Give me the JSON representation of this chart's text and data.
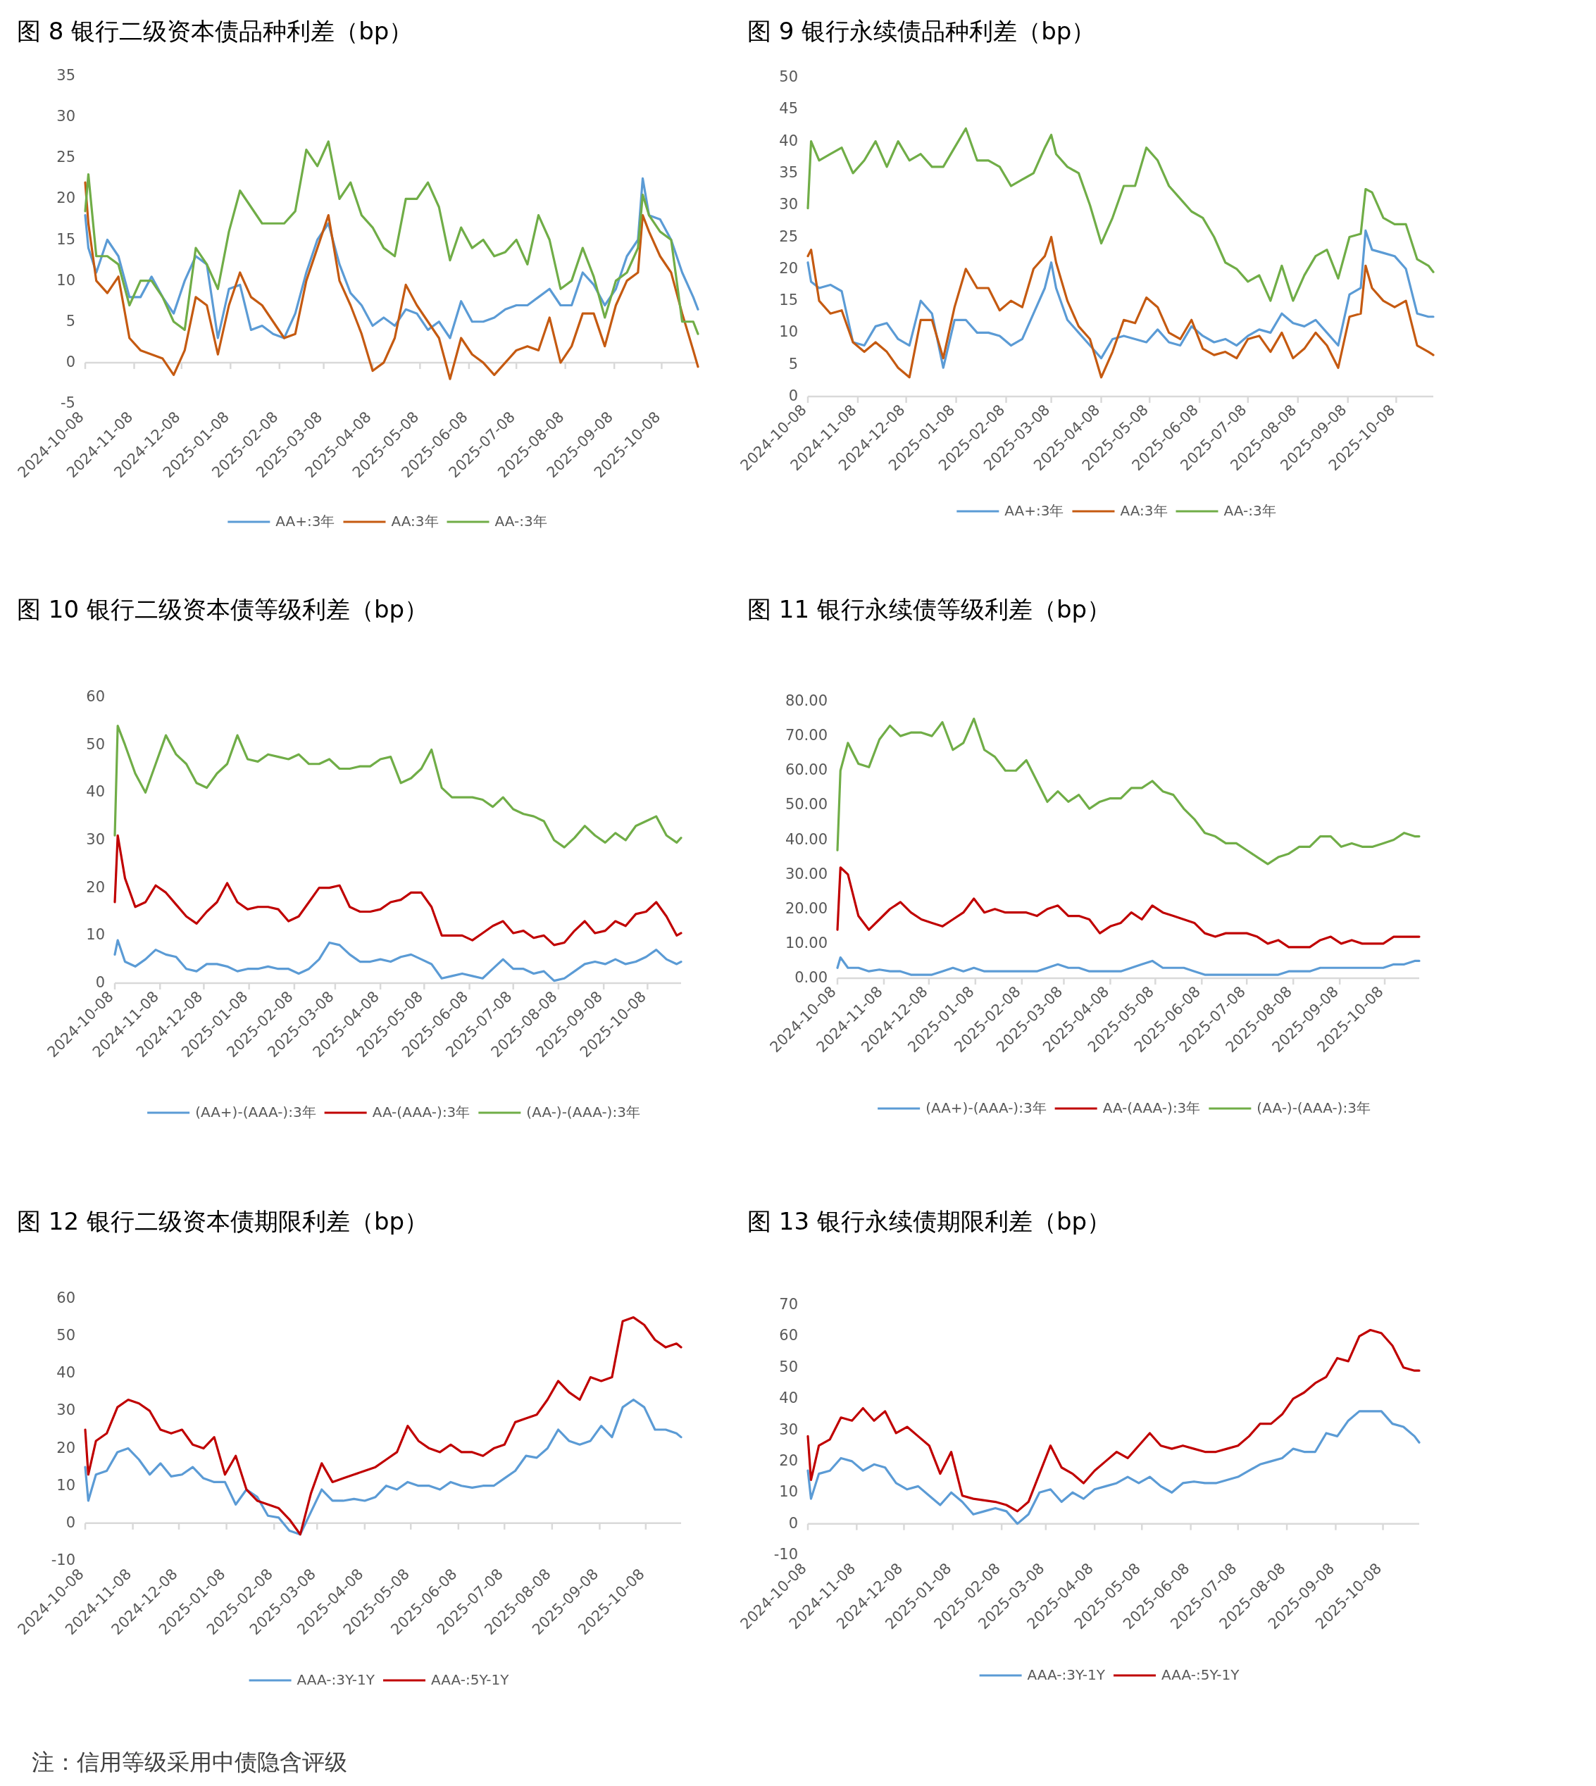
{
  "chart_data": [
    {
      "type": "line",
      "title": "图 8  银行二级资本债品种利差（bp）",
      "legend": "bottom",
      "grid": false,
      "xlim": [
        "2024-10-08",
        "2025-10-31"
      ],
      "xticks": [
        "2024-10-08",
        "2024-11-08",
        "2024-12-08",
        "2025-01-08",
        "2025-02-08",
        "2025-03-08",
        "2025-04-08",
        "2025-05-08",
        "2025-06-08",
        "2025-07-08",
        "2025-08-08",
        "2025-09-08",
        "2025-10-08"
      ],
      "ylim": [
        -5,
        35
      ],
      "ref_lines": [
        {
          "axis": "y",
          "value": 0,
          "color": "#d9d9d9"
        }
      ],
      "yticks": [
        -5,
        0,
        5,
        10,
        15,
        20,
        25,
        30,
        35
      ],
      "x": [
        "2024-10-08",
        "2024-10-10",
        "2024-10-15",
        "2024-10-22",
        "2024-10-29",
        "2024-11-05",
        "2024-11-12",
        "2024-11-19",
        "2024-11-26",
        "2024-12-03",
        "2024-12-10",
        "2024-12-17",
        "2024-12-24",
        "2024-12-31",
        "2025-01-07",
        "2025-01-14",
        "2025-01-21",
        "2025-01-28",
        "2025-02-04",
        "2025-02-11",
        "2025-02-18",
        "2025-02-25",
        "2025-03-04",
        "2025-03-11",
        "2025-03-18",
        "2025-03-25",
        "2025-04-01",
        "2025-04-08",
        "2025-04-15",
        "2025-04-22",
        "2025-04-29",
        "2025-05-06",
        "2025-05-13",
        "2025-05-20",
        "2025-05-27",
        "2025-06-03",
        "2025-06-10",
        "2025-06-17",
        "2025-06-24",
        "2025-07-01",
        "2025-07-08",
        "2025-07-15",
        "2025-07-22",
        "2025-07-29",
        "2025-08-05",
        "2025-08-12",
        "2025-08-19",
        "2025-08-26",
        "2025-09-02",
        "2025-09-09",
        "2025-09-16",
        "2025-09-23",
        "2025-09-26",
        "2025-09-30",
        "2025-10-07",
        "2025-10-14",
        "2025-10-21",
        "2025-10-28",
        "2025-10-31"
      ],
      "series": [
        {
          "name": "AA+:3年",
          "color": "#5b9bd5",
          "values": [
            18,
            14,
            11,
            15,
            13,
            8,
            8,
            10.5,
            8,
            6,
            10,
            13,
            12,
            3,
            9,
            9.5,
            4,
            4.5,
            3.5,
            3,
            6,
            11,
            15,
            17,
            12,
            8.5,
            7,
            4.5,
            5.5,
            4.5,
            6.5,
            6,
            4,
            5,
            3,
            7.5,
            5,
            5,
            5.5,
            6.5,
            7,
            7,
            8,
            9,
            7,
            7,
            11,
            9.5,
            7,
            9,
            13,
            15,
            22.5,
            18,
            17.5,
            15,
            11,
            8,
            6.5
          ]
        },
        {
          "name": "AA:3年",
          "color": "#c55a11",
          "values": [
            22,
            17,
            10,
            8.5,
            10.5,
            3,
            1.5,
            1,
            0.5,
            -1.5,
            1.5,
            8,
            7,
            1,
            7,
            11,
            8,
            7,
            5,
            3,
            3.5,
            10,
            14,
            18,
            10,
            7,
            3.5,
            -1,
            0,
            3,
            9.5,
            7,
            5,
            3,
            -2,
            3,
            1,
            0,
            -1.5,
            0,
            1.5,
            2,
            1.5,
            5.5,
            0,
            2,
            6,
            6,
            2,
            7,
            10,
            11,
            18,
            16,
            13,
            11,
            6,
            1.5,
            -0.5
          ]
        },
        {
          "name": "AA-:3年",
          "color": "#70ad47",
          "values": [
            18.5,
            23,
            13,
            13,
            12,
            7,
            10,
            10,
            8,
            5,
            4,
            14,
            12,
            9,
            16,
            21,
            19,
            17,
            17,
            17,
            18.5,
            26,
            24,
            27,
            20,
            22,
            18,
            16.5,
            14,
            13,
            20,
            20,
            22,
            19,
            12.5,
            16.5,
            14,
            15,
            13,
            13.5,
            15,
            12,
            18,
            15,
            9,
            10,
            14,
            10.5,
            5.5,
            10,
            11,
            14,
            20.5,
            18,
            16,
            15,
            5,
            5,
            3.5
          ]
        }
      ]
    },
    {
      "type": "line",
      "title": "图 9  银行永续债品种利差（bp）",
      "legend": "bottom",
      "grid": false,
      "xlim": [
        "2024-10-08",
        "2025-10-31"
      ],
      "xticks": [
        "2024-10-08",
        "2024-11-08",
        "2024-12-08",
        "2025-01-08",
        "2025-02-08",
        "2025-03-08",
        "2025-04-08",
        "2025-05-08",
        "2025-06-08",
        "2025-07-08",
        "2025-08-08",
        "2025-09-08",
        "2025-10-08"
      ],
      "ylim": [
        0,
        50
      ],
      "yticks": [
        0,
        5,
        10,
        15,
        20,
        25,
        30,
        35,
        40,
        45,
        50
      ],
      "x": [
        "2024-10-08",
        "2024-10-10",
        "2024-10-15",
        "2024-10-22",
        "2024-10-29",
        "2024-11-05",
        "2024-11-12",
        "2024-11-19",
        "2024-11-26",
        "2024-12-03",
        "2024-12-10",
        "2024-12-17",
        "2024-12-24",
        "2024-12-31",
        "2025-01-07",
        "2025-01-14",
        "2025-01-21",
        "2025-01-28",
        "2025-02-04",
        "2025-02-11",
        "2025-02-18",
        "2025-02-25",
        "2025-03-04",
        "2025-03-08",
        "2025-03-11",
        "2025-03-18",
        "2025-03-25",
        "2025-04-01",
        "2025-04-08",
        "2025-04-15",
        "2025-04-22",
        "2025-04-29",
        "2025-05-06",
        "2025-05-13",
        "2025-05-20",
        "2025-05-27",
        "2025-06-03",
        "2025-06-10",
        "2025-06-17",
        "2025-06-24",
        "2025-07-01",
        "2025-07-08",
        "2025-07-15",
        "2025-07-22",
        "2025-07-29",
        "2025-08-05",
        "2025-08-12",
        "2025-08-19",
        "2025-08-26",
        "2025-09-02",
        "2025-09-09",
        "2025-09-16",
        "2025-09-19",
        "2025-09-23",
        "2025-09-30",
        "2025-10-07",
        "2025-10-14",
        "2025-10-21",
        "2025-10-28",
        "2025-10-31"
      ],
      "series": [
        {
          "name": "AA+:3年",
          "color": "#5b9bd5",
          "values": [
            21,
            18,
            17,
            17.5,
            16.5,
            8.5,
            8,
            11,
            11.5,
            9,
            8,
            15,
            13,
            4.5,
            12,
            12,
            10,
            10,
            9.5,
            8,
            9,
            13,
            17,
            21,
            17,
            12,
            10,
            8,
            6,
            9,
            9.5,
            9,
            8.5,
            10.5,
            8.5,
            8,
            11,
            9.5,
            8.5,
            9,
            8,
            9.5,
            10.5,
            10,
            13,
            11.5,
            11,
            12,
            10,
            8,
            16,
            17,
            26,
            23,
            22.5,
            22,
            20,
            13,
            12.5,
            12.5
          ]
        },
        {
          "name": "AA:3年",
          "color": "#c55a11",
          "values": [
            22,
            23,
            15,
            13,
            13.5,
            8.5,
            7,
            8.5,
            7,
            4.5,
            3,
            12,
            12,
            6,
            14,
            20,
            17,
            17,
            13.5,
            15,
            14,
            20,
            22,
            25,
            21,
            15,
            11,
            9,
            3,
            7,
            12,
            11.5,
            15.5,
            14,
            10,
            9,
            12,
            7.5,
            6.5,
            7,
            6,
            9,
            9.5,
            7,
            10,
            6,
            7.5,
            10,
            8,
            4.5,
            12.5,
            13,
            20.5,
            17,
            15,
            14,
            15,
            8,
            7,
            6.5
          ]
        },
        {
          "name": "AA-:3年",
          "color": "#70ad47",
          "values": [
            29.5,
            40,
            37,
            38,
            39,
            35,
            37,
            40,
            36,
            40,
            37,
            38,
            36,
            36,
            39,
            42,
            37,
            37,
            36,
            33,
            34,
            35,
            39,
            41,
            38,
            36,
            35,
            30,
            24,
            28,
            33,
            33,
            39,
            37,
            33,
            31,
            29,
            28,
            25,
            21,
            20,
            18,
            19,
            15,
            20.5,
            15,
            19,
            22,
            23,
            18.5,
            25,
            25.5,
            32.5,
            32,
            28,
            27,
            27,
            21.5,
            20.5,
            19.5
          ]
        }
      ]
    },
    {
      "type": "line",
      "title": "图 10  银行二级资本债等级利差（bp）",
      "legend": "bottom",
      "grid": false,
      "xlim": [
        "2024-10-08",
        "2025-10-31"
      ],
      "xticks": [
        "2024-10-08",
        "2024-11-08",
        "2024-12-08",
        "2025-01-08",
        "2025-02-08",
        "2025-03-08",
        "2025-04-08",
        "2025-05-08",
        "2025-06-08",
        "2025-07-08",
        "2025-08-08",
        "2025-09-08",
        "2025-10-08"
      ],
      "ylim": [
        0,
        60
      ],
      "yticks": [
        0,
        10,
        20,
        30,
        40,
        50,
        60
      ],
      "x": [
        "2024-10-08",
        "2024-10-10",
        "2024-10-15",
        "2024-10-22",
        "2024-10-29",
        "2024-11-05",
        "2024-11-12",
        "2024-11-19",
        "2024-11-26",
        "2024-12-03",
        "2024-12-10",
        "2024-12-17",
        "2024-12-24",
        "2024-12-31",
        "2025-01-07",
        "2025-01-14",
        "2025-01-21",
        "2025-01-28",
        "2025-02-04",
        "2025-02-11",
        "2025-02-18",
        "2025-02-25",
        "2025-03-04",
        "2025-03-11",
        "2025-03-18",
        "2025-03-25",
        "2025-04-01",
        "2025-04-08",
        "2025-04-15",
        "2025-04-22",
        "2025-04-29",
        "2025-05-06",
        "2025-05-13",
        "2025-05-20",
        "2025-05-27",
        "2025-06-03",
        "2025-06-10",
        "2025-06-17",
        "2025-06-24",
        "2025-07-01",
        "2025-07-08",
        "2025-07-15",
        "2025-07-22",
        "2025-07-29",
        "2025-08-05",
        "2025-08-12",
        "2025-08-19",
        "2025-08-26",
        "2025-09-02",
        "2025-09-09",
        "2025-09-16",
        "2025-09-23",
        "2025-09-30",
        "2025-10-07",
        "2025-10-14",
        "2025-10-21",
        "2025-10-28",
        "2025-10-31"
      ],
      "series": [
        {
          "name": "(AA+)-(AAA-):3年",
          "color": "#5b9bd5",
          "values": [
            6,
            9,
            4.5,
            3.5,
            5,
            7,
            6,
            5.5,
            3,
            2.5,
            4,
            4,
            3.5,
            2.5,
            3,
            3,
            3.5,
            3,
            3,
            2,
            3,
            5,
            8.5,
            8,
            6,
            4.5,
            4.5,
            5,
            4.5,
            5.5,
            6,
            5,
            4,
            1,
            1.5,
            2,
            1.5,
            1,
            3,
            5,
            3,
            3,
            2,
            2.5,
            0.5,
            1,
            2.5,
            4,
            4.5,
            4,
            5,
            4,
            4.5,
            5.5,
            7,
            5,
            4,
            4.5
          ]
        },
        {
          "name": "AA-(AAA-):3年",
          "color": "#c00000",
          "values": [
            17,
            31,
            22,
            16,
            17,
            20.5,
            19,
            16.5,
            14,
            12.5,
            15,
            17,
            21,
            17,
            15.5,
            16,
            16,
            15.5,
            13,
            14,
            17,
            20,
            20,
            20.5,
            16,
            15,
            15,
            15.5,
            17,
            17.5,
            19,
            19,
            16,
            10,
            10,
            10,
            9,
            10.5,
            12,
            13,
            10.5,
            11,
            9.5,
            10,
            8,
            8.5,
            11,
            13,
            10.5,
            11,
            13,
            12,
            14.5,
            15,
            17,
            14,
            10,
            10.5
          ]
        },
        {
          "name": "(AA-)-(AAA-):3年",
          "color": "#70ad47",
          "values": [
            31,
            54,
            50,
            44,
            40,
            46,
            52,
            48,
            46,
            42,
            41,
            44,
            46,
            52,
            47,
            46.5,
            48,
            47.5,
            47,
            48,
            46,
            46,
            47,
            45,
            45,
            45.5,
            45.5,
            47,
            47.5,
            42,
            43,
            45,
            49,
            41,
            39,
            39,
            39,
            38.5,
            37,
            39,
            36.5,
            35.5,
            35,
            34,
            30,
            28.5,
            30.5,
            33,
            31,
            29.5,
            31.5,
            30,
            33,
            34,
            35,
            31,
            29.5,
            30.5
          ]
        }
      ]
    },
    {
      "type": "line",
      "title": "图 11  银行永续债等级利差（bp）",
      "legend": "bottom",
      "grid": false,
      "xlim": [
        "2024-10-08",
        "2025-10-31"
      ],
      "xticks": [
        "2024-10-08",
        "2024-11-08",
        "2024-12-08",
        "2025-01-08",
        "2025-02-08",
        "2025-03-08",
        "2025-04-08",
        "2025-05-08",
        "2025-06-08",
        "2025-07-08",
        "2025-08-08",
        "2025-09-08",
        "2025-10-08"
      ],
      "ylim": [
        0,
        80
      ],
      "yticks": [
        {
          "value": 0,
          "label": "0.00"
        },
        {
          "value": 10,
          "label": "10.00"
        },
        {
          "value": 20,
          "label": "20.00"
        },
        {
          "value": 30,
          "label": "30.00"
        },
        {
          "value": 40,
          "label": "40.00"
        },
        {
          "value": 50,
          "label": "50.00"
        },
        {
          "value": 60,
          "label": "60.00"
        },
        {
          "value": 70,
          "label": "70.00"
        },
        {
          "value": 80,
          "label": "80.00"
        }
      ],
      "x": [
        "2024-10-08",
        "2024-10-10",
        "2024-10-15",
        "2024-10-22",
        "2024-10-29",
        "2024-11-05",
        "2024-11-12",
        "2024-11-19",
        "2024-11-26",
        "2024-12-03",
        "2024-12-10",
        "2024-12-17",
        "2024-12-24",
        "2024-12-31",
        "2025-01-07",
        "2025-01-14",
        "2025-01-21",
        "2025-01-28",
        "2025-02-04",
        "2025-02-11",
        "2025-02-18",
        "2025-02-25",
        "2025-03-04",
        "2025-03-11",
        "2025-03-18",
        "2025-03-25",
        "2025-04-01",
        "2025-04-08",
        "2025-04-15",
        "2025-04-22",
        "2025-04-29",
        "2025-05-06",
        "2025-05-13",
        "2025-05-20",
        "2025-05-27",
        "2025-06-03",
        "2025-06-10",
        "2025-06-17",
        "2025-06-24",
        "2025-07-01",
        "2025-07-08",
        "2025-07-15",
        "2025-07-22",
        "2025-07-29",
        "2025-08-05",
        "2025-08-12",
        "2025-08-19",
        "2025-08-26",
        "2025-09-02",
        "2025-09-09",
        "2025-09-16",
        "2025-09-23",
        "2025-09-30",
        "2025-10-07",
        "2025-10-14",
        "2025-10-21",
        "2025-10-28",
        "2025-10-31"
      ],
      "series": [
        {
          "name": "(AA+)-(AAA-):3年",
          "color": "#5b9bd5",
          "values": [
            3,
            6,
            3,
            3,
            2,
            2.5,
            2,
            2,
            1,
            1,
            1,
            2,
            3,
            2,
            3,
            2,
            2,
            2,
            2,
            2,
            2,
            3,
            4,
            3,
            3,
            2,
            2,
            2,
            2,
            3,
            4,
            5,
            3,
            3,
            3,
            2,
            1,
            1,
            1,
            1,
            1,
            1,
            1,
            1,
            2,
            2,
            2,
            3,
            3,
            3,
            3,
            3,
            3,
            3,
            4,
            4,
            5,
            5
          ]
        },
        {
          "name": "AA-(AAA-):3年",
          "color": "#c00000",
          "values": [
            14,
            32,
            30,
            18,
            14,
            17,
            20,
            22,
            19,
            17,
            16,
            15,
            17,
            19,
            23,
            19,
            20,
            19,
            19,
            19,
            18,
            20,
            21,
            18,
            18,
            17,
            13,
            15,
            16,
            19,
            17,
            21,
            19,
            18,
            17,
            16,
            13,
            12,
            13,
            13,
            13,
            12,
            10,
            11,
            9,
            9,
            9,
            11,
            12,
            10,
            11,
            10,
            10,
            10,
            12,
            12,
            12,
            12
          ]
        },
        {
          "name": "(AA-)-(AAA-):3年",
          "color": "#70ad47",
          "values": [
            37,
            60,
            68,
            62,
            61,
            69,
            73,
            70,
            71,
            71,
            70,
            74,
            66,
            68,
            75,
            66,
            64,
            60,
            60,
            63,
            57,
            51,
            54,
            51,
            53,
            49,
            51,
            52,
            52,
            55,
            55,
            57,
            54,
            53,
            49,
            46,
            42,
            41,
            39,
            39,
            37,
            35,
            33,
            35,
            36,
            38,
            38,
            41,
            41,
            38,
            39,
            38,
            38,
            39,
            40,
            42,
            41,
            41
          ]
        }
      ]
    },
    {
      "type": "line",
      "title": "图 12  银行二级资本债期限利差（bp）",
      "legend": "bottom",
      "grid": false,
      "xlim": [
        "2024-10-08",
        "2025-10-31"
      ],
      "xticks": [
        "2024-10-08",
        "2024-11-08",
        "2024-12-08",
        "2025-01-08",
        "2025-02-08",
        "2025-03-08",
        "2025-04-08",
        "2025-05-08",
        "2025-06-08",
        "2025-07-08",
        "2025-08-08",
        "2025-09-08",
        "2025-10-08"
      ],
      "ylim": [
        -10,
        60
      ],
      "ref_lines": [
        {
          "axis": "y",
          "value": 0,
          "color": "#d9d9d9"
        }
      ],
      "yticks": [
        -10,
        0,
        10,
        20,
        30,
        40,
        50,
        60
      ],
      "x": [
        "2024-10-08",
        "2024-10-10",
        "2024-10-15",
        "2024-10-22",
        "2024-10-29",
        "2024-11-05",
        "2024-11-12",
        "2024-11-19",
        "2024-11-26",
        "2024-12-03",
        "2024-12-10",
        "2024-12-17",
        "2024-12-24",
        "2024-12-31",
        "2025-01-07",
        "2025-01-14",
        "2025-01-21",
        "2025-01-28",
        "2025-02-04",
        "2025-02-11",
        "2025-02-18",
        "2025-02-25",
        "2025-03-04",
        "2025-03-11",
        "2025-03-18",
        "2025-03-25",
        "2025-04-01",
        "2025-04-08",
        "2025-04-15",
        "2025-04-22",
        "2025-04-29",
        "2025-05-06",
        "2025-05-13",
        "2025-05-20",
        "2025-05-27",
        "2025-06-03",
        "2025-06-10",
        "2025-06-17",
        "2025-06-24",
        "2025-07-01",
        "2025-07-08",
        "2025-07-15",
        "2025-07-22",
        "2025-07-29",
        "2025-08-05",
        "2025-08-12",
        "2025-08-19",
        "2025-08-26",
        "2025-09-02",
        "2025-09-09",
        "2025-09-16",
        "2025-09-23",
        "2025-09-30",
        "2025-10-07",
        "2025-10-14",
        "2025-10-21",
        "2025-10-28",
        "2025-10-31"
      ],
      "series": [
        {
          "name": "AAA-:3Y-1Y",
          "color": "#5b9bd5",
          "values": [
            15,
            6,
            13,
            14,
            19,
            20,
            17,
            13,
            16,
            12.5,
            13,
            15,
            12,
            11,
            11,
            5,
            9,
            7,
            2,
            1.5,
            -2,
            -3,
            3,
            9,
            6,
            6,
            6.5,
            6,
            7,
            10,
            9,
            11,
            10,
            10,
            9,
            11,
            10,
            9.5,
            10,
            10,
            12,
            14,
            18,
            17.5,
            20,
            25,
            22,
            21,
            22,
            26,
            23,
            31,
            33,
            31,
            25,
            25,
            24,
            23
          ]
        },
        {
          "name": "AAA-:5Y-1Y",
          "color": "#c00000",
          "values": [
            25,
            13,
            22,
            24,
            31,
            33,
            32,
            30,
            25,
            24,
            25,
            21,
            20,
            23,
            13,
            18,
            9,
            6,
            5,
            4,
            1,
            -3,
            8,
            16,
            11,
            12,
            13,
            14,
            15,
            17,
            19,
            26,
            22,
            20,
            19,
            21,
            19,
            19,
            18,
            20,
            21,
            27,
            28,
            29,
            33,
            38,
            35,
            33,
            39,
            38,
            39,
            54,
            55,
            53,
            49,
            47,
            48,
            47
          ]
        }
      ]
    },
    {
      "type": "line",
      "title": "图 13  银行永续债期限利差（bp）",
      "legend": "bottom",
      "grid": false,
      "xlim": [
        "2024-10-08",
        "2025-10-31"
      ],
      "xticks": [
        "2024-10-08",
        "2024-11-08",
        "2024-12-08",
        "2025-01-08",
        "2025-02-08",
        "2025-03-08",
        "2025-04-08",
        "2025-05-08",
        "2025-06-08",
        "2025-07-08",
        "2025-08-08",
        "2025-09-08",
        "2025-10-08"
      ],
      "ylim": [
        -10,
        70
      ],
      "yticks": [
        -10,
        0,
        10,
        20,
        30,
        40,
        50,
        60,
        70
      ],
      "x": [
        "2024-10-08",
        "2024-10-10",
        "2024-10-15",
        "2024-10-22",
        "2024-10-29",
        "2024-11-05",
        "2024-11-12",
        "2024-11-19",
        "2024-11-26",
        "2024-12-03",
        "2024-12-10",
        "2024-12-17",
        "2024-12-24",
        "2024-12-31",
        "2025-01-07",
        "2025-01-14",
        "2025-01-21",
        "2025-01-28",
        "2025-02-04",
        "2025-02-11",
        "2025-02-18",
        "2025-02-25",
        "2025-03-04",
        "2025-03-11",
        "2025-03-18",
        "2025-03-25",
        "2025-04-01",
        "2025-04-08",
        "2025-04-15",
        "2025-04-22",
        "2025-04-29",
        "2025-05-06",
        "2025-05-13",
        "2025-05-20",
        "2025-05-27",
        "2025-06-03",
        "2025-06-10",
        "2025-06-17",
        "2025-06-24",
        "2025-07-01",
        "2025-07-08",
        "2025-07-15",
        "2025-07-22",
        "2025-07-29",
        "2025-08-05",
        "2025-08-12",
        "2025-08-19",
        "2025-08-26",
        "2025-09-02",
        "2025-09-09",
        "2025-09-16",
        "2025-09-23",
        "2025-09-30",
        "2025-10-07",
        "2025-10-14",
        "2025-10-21",
        "2025-10-28",
        "2025-10-31"
      ],
      "series": [
        {
          "name": "AAA-:3Y-1Y",
          "color": "#5b9bd5",
          "values": [
            17,
            8,
            16,
            17,
            21,
            20,
            17,
            19,
            18,
            13,
            11,
            12,
            9,
            6,
            10,
            7,
            3,
            4,
            5,
            4,
            0,
            3,
            10,
            11,
            7,
            10,
            8,
            11,
            12,
            13,
            15,
            13,
            15,
            12,
            10,
            13,
            13.5,
            13,
            13,
            14,
            15,
            17,
            19,
            20,
            21,
            24,
            23,
            23,
            29,
            28,
            33,
            36,
            36,
            36,
            32,
            31,
            28,
            26
          ]
        },
        {
          "name": "AAA-:5Y-1Y",
          "color": "#c00000",
          "values": [
            28,
            14,
            25,
            27,
            34,
            33,
            37,
            33,
            36,
            29,
            31,
            28,
            25,
            16,
            23,
            9,
            8,
            7.5,
            7,
            6,
            4,
            7,
            16,
            25,
            18,
            16,
            13,
            17,
            20,
            23,
            21,
            25,
            29,
            25,
            24,
            25,
            24,
            23,
            23,
            24,
            25,
            28,
            32,
            32,
            35,
            40,
            42,
            45,
            47,
            53,
            52,
            60,
            62,
            61,
            57,
            50,
            49,
            49
          ]
        }
      ],
      "annotations": [
        "注：信用等级采用中债隐含评级"
      ]
    }
  ]
}
